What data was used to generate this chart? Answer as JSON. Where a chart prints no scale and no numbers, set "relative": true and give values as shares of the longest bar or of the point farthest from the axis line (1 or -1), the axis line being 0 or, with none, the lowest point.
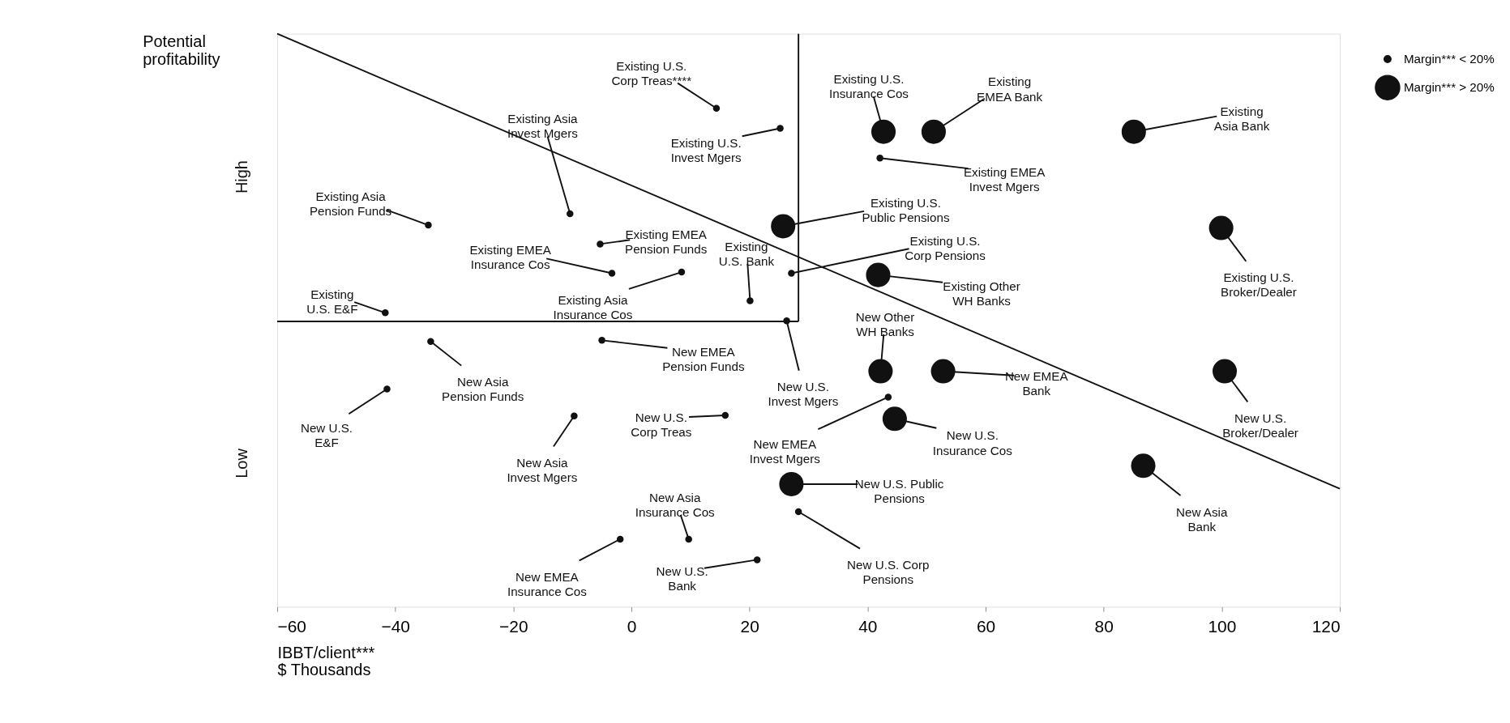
{
  "chart_data": {
    "type": "bubble",
    "relative": true,
    "ylabel": "Potential\nprofitability",
    "xlabel": "IBBT/client***\n$ Thousands",
    "xlim": [
      -60,
      120
    ],
    "xticks": [
      -60,
      -40,
      -20,
      0,
      20,
      40,
      60,
      80,
      100,
      120
    ],
    "grid": false,
    "legend": "right",
    "series": [
      {
        "name": "Margin*** < 20%",
        "color": "#111111",
        "x": [
          14.4,
          25.2,
          -10.4,
          -34.4,
          -5.3,
          -3.3,
          8.5,
          20.1,
          27.1,
          -41.7,
          42.1,
          26.3,
          -34.0,
          -5.0,
          -41.4,
          -9.7,
          15.9,
          43.5,
          28.3,
          9.7,
          -1.9,
          21.3
        ],
        "values": [
          0.87,
          0.835,
          0.686,
          0.666,
          0.633,
          0.582,
          0.584,
          0.534,
          0.582,
          0.513,
          0.783,
          0.499,
          0.463,
          0.465,
          0.38,
          0.333,
          0.334,
          0.366,
          0.166,
          0.118,
          0.118,
          0.082
        ],
        "sizes": [
          0.08,
          0.08,
          0.08,
          0.08,
          0.08,
          0.08,
          0.08,
          0.08,
          0.08,
          0.08,
          0.08,
          0.08,
          0.08,
          0.08,
          0.08,
          0.08,
          0.08,
          0.08,
          0.08,
          0.08,
          0.08,
          0.08
        ]
      },
      {
        "name": "Margin*** > 20%",
        "color": "#111111",
        "x": [
          42.7,
          51.2,
          85.1,
          25.7,
          41.8,
          99.9,
          42.2,
          52.8,
          100.5,
          44.6,
          27.1,
          86.7
        ],
        "values": [
          0.829,
          0.829,
          0.829,
          0.664,
          0.579,
          0.661,
          0.411,
          0.411,
          0.411,
          0.328,
          0.214,
          0.246
        ],
        "sizes": [
          1,
          1,
          1,
          1,
          1,
          1,
          1,
          1,
          1,
          1,
          1,
          1
        ]
      },
      {
        "type": "line",
        "color": "#111111",
        "x": [
          -60,
          120
        ],
        "values": [
          1.0,
          0.206
        ]
      },
      {
        "type": "line",
        "color": "#111111",
        "x": [
          -60,
          28.3
        ],
        "values": [
          0.498,
          0.498
        ]
      },
      {
        "type": "line",
        "color": "#111111",
        "x": [
          28.3,
          28.3
        ],
        "values": [
          0.498,
          1.0
        ]
      }
    ],
    "annotations": [
      {
        "text": "Existing U.S.\nCorp Treas****",
        "x": 14.4,
        "y": 0.87
      },
      {
        "text": "Existing U.S.\nInvest Mgers",
        "x": 25.2,
        "y": 0.835
      },
      {
        "text": "Existing Asia\nInvest Mgers",
        "x": -10.4,
        "y": 0.686
      },
      {
        "text": "Existing Asia\nPension Funds",
        "x": -34.4,
        "y": 0.666
      },
      {
        "text": "Existing EMEA\nPension Funds",
        "x": -5.3,
        "y": 0.633
      },
      {
        "text": "Existing EMEA\nInsurance Cos",
        "x": -3.3,
        "y": 0.582
      },
      {
        "text": "Existing Asia\nInsurance Cos",
        "x": 8.5,
        "y": 0.584
      },
      {
        "text": "Existing\nU.S. Bank",
        "x": 20.1,
        "y": 0.534
      },
      {
        "text": "Existing U.S.\nCorp Pensions",
        "x": 27.1,
        "y": 0.582
      },
      {
        "text": "Existing\nU.S. E&F",
        "x": -41.7,
        "y": 0.513
      },
      {
        "text": "Existing EMEA\nInvest Mgers",
        "x": 42.1,
        "y": 0.783
      },
      {
        "text": "New U.S.\nInvest Mgers",
        "x": 26.3,
        "y": 0.499
      },
      {
        "text": "New Asia\nPension Funds",
        "x": -34.0,
        "y": 0.463
      },
      {
        "text": "New EMEA\nPension Funds",
        "x": -5.0,
        "y": 0.465
      },
      {
        "text": "New U.S.\nE&F",
        "x": -41.4,
        "y": 0.38
      },
      {
        "text": "New Asia\nInvest Mgers",
        "x": -9.7,
        "y": 0.333
      },
      {
        "text": "New U.S.\nCorp Treas",
        "x": 15.9,
        "y": 0.334
      },
      {
        "text": "New EMEA\nInvest Mgers",
        "x": 43.5,
        "y": 0.366
      },
      {
        "text": "New U.S. Corp\nPensions",
        "x": 28.3,
        "y": 0.166
      },
      {
        "text": "New Asia\nInsurance Cos",
        "x": 9.7,
        "y": 0.118
      },
      {
        "text": "New EMEA\nInsurance Cos",
        "x": -1.9,
        "y": 0.118
      },
      {
        "text": "New U.S.\nBank",
        "x": 21.3,
        "y": 0.082
      },
      {
        "text": "Existing U.S.\nInsurance Cos",
        "x": 42.7,
        "y": 0.829
      },
      {
        "text": "Existing\nEMEA Bank",
        "x": 51.2,
        "y": 0.829
      },
      {
        "text": "Existing\nAsia Bank",
        "x": 85.1,
        "y": 0.829
      },
      {
        "text": "Existing U.S.\nPublic Pensions",
        "x": 25.7,
        "y": 0.664
      },
      {
        "text": "Existing Other\nWH Banks",
        "x": 41.8,
        "y": 0.579
      },
      {
        "text": "Existing U.S.\nBroker/Dealer",
        "x": 99.9,
        "y": 0.661
      },
      {
        "text": "New Other\nWH Banks",
        "x": 42.2,
        "y": 0.411
      },
      {
        "text": "New EMEA\nBank",
        "x": 52.8,
        "y": 0.411
      },
      {
        "text": "New U.S.\nBroker/Dealer",
        "x": 100.5,
        "y": 0.411
      },
      {
        "text": "New U.S.\nInsurance Cos",
        "x": 44.6,
        "y": 0.328
      },
      {
        "text": "New U.S. Public\nPensions",
        "x": 27.1,
        "y": 0.214
      },
      {
        "text": "New Asia\nBank",
        "x": 86.7,
        "y": 0.246
      },
      "High",
      "Low"
    ]
  }
}
